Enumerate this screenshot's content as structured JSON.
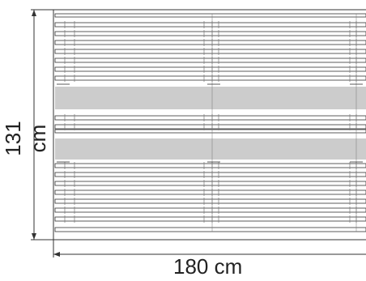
{
  "dimensions": {
    "height_label": "131 cm",
    "width_label": "180 cm"
  },
  "colors": {
    "line": "#333333",
    "light_line": "#777777",
    "background": "#ffffff"
  }
}
